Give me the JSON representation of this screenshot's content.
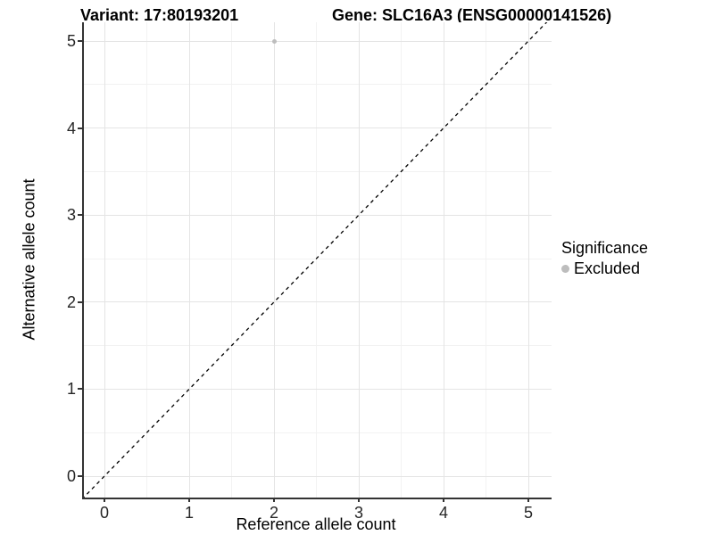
{
  "title": {
    "variant": "Variant: 17:80193201",
    "gene": "Gene: SLC16A3 (ENSG00000141526)"
  },
  "axes": {
    "x": {
      "label": "Reference allele count",
      "ticks": [
        0,
        1,
        2,
        3,
        4,
        5
      ]
    },
    "y": {
      "label": "Alternative allele count",
      "ticks": [
        0,
        1,
        2,
        3,
        4,
        5
      ]
    }
  },
  "legend": {
    "title": "Significance",
    "items": [
      {
        "label": "Excluded",
        "marker": "dot-icon",
        "color": "#bdbdbd"
      }
    ]
  },
  "chart_data": {
    "type": "scatter",
    "title": "Variant: 17:80193201 | Gene: SLC16A3 (ENSG00000141526)",
    "xlabel": "Reference allele count",
    "ylabel": "Alternative allele count",
    "xlim": [
      -0.25,
      5.27
    ],
    "ylim": [
      -0.25,
      5.21
    ],
    "x_ticks": [
      0,
      1,
      2,
      3,
      4,
      5
    ],
    "y_ticks": [
      0,
      1,
      2,
      3,
      4,
      5
    ],
    "grid": true,
    "minor_grid_step": 0.5,
    "legend_position": "right",
    "series": [
      {
        "name": "Excluded",
        "color": "#bdbdbd",
        "points": [
          {
            "x": 2,
            "y": 5
          }
        ]
      }
    ],
    "reference_line": {
      "equation": "y = x",
      "style": "dashed",
      "color": "#000000"
    }
  },
  "colors": {
    "major_grid": "#e4e4e4",
    "minor_grid": "#f2f2f2",
    "axis_line": "#333333",
    "point": "#bdbdbd",
    "reference_line": "#000000"
  }
}
